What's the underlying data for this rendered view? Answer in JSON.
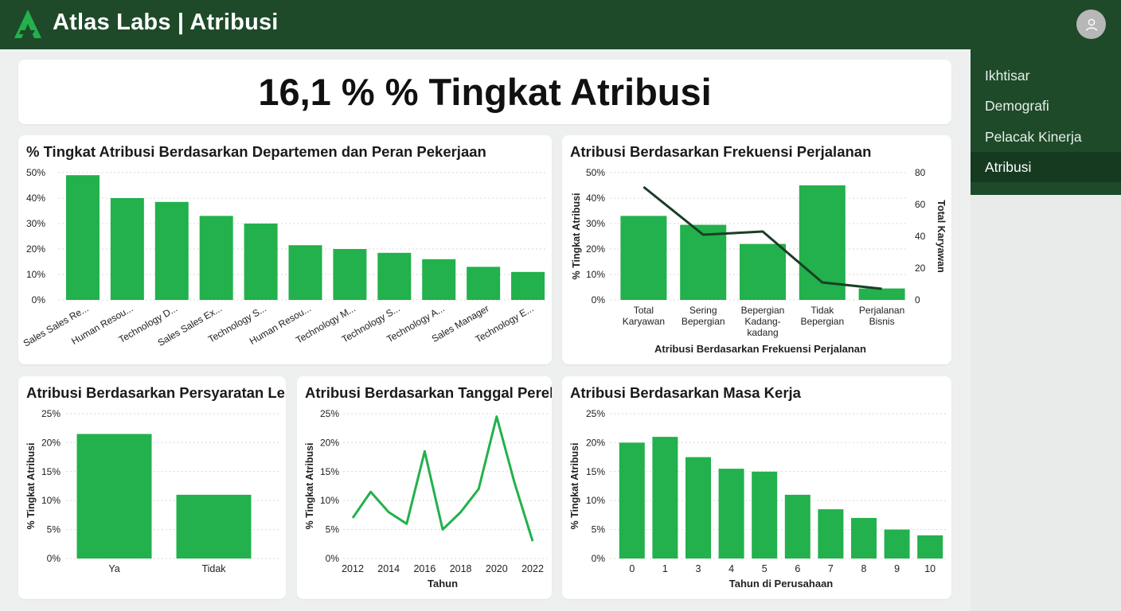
{
  "app": {
    "title": "Atlas Labs | Atribusi"
  },
  "nav": [
    {
      "label": "Ikhtisar",
      "active": false
    },
    {
      "label": "Demografi",
      "active": false
    },
    {
      "label": "Pelacak Kinerja",
      "active": false
    },
    {
      "label": "Atribusi",
      "active": true
    }
  ],
  "kpi": {
    "text": "16,1 % % Tingkat Atribusi"
  },
  "colors": {
    "bar": "#22b14c",
    "line": "#1a3d26",
    "header": "#1e4a2a",
    "grid": "#d9d9d9"
  },
  "icons": {
    "logo": "atlas-logo",
    "avatar": "user-icon"
  },
  "chart_data": [
    {
      "id": "dept",
      "type": "bar",
      "title": "% Tingkat Atribusi Berdasarkan Departemen dan Peran Pekerjaan",
      "categories": [
        "Sales Sales Re...",
        "Human Resou...",
        "Technology D...",
        "Sales Sales Ex...",
        "Technology S...",
        "Human Resou...",
        "Technology M...",
        "Technology S...",
        "Technology A...",
        "Sales Manager",
        "Technology E..."
      ],
      "values": [
        49,
        40,
        38.5,
        33,
        30,
        21.5,
        20,
        18.5,
        16,
        13,
        11
      ],
      "yticks": [
        "0%",
        "10%",
        "20%",
        "30%",
        "40%",
        "50%"
      ],
      "ylim": [
        0,
        50
      ],
      "ylabel": "",
      "xlabel": "",
      "grid": true
    },
    {
      "id": "travel",
      "type": "bar",
      "title": "Atribusi Berdasarkan Frekuensi Perjalanan",
      "categories": [
        [
          "Total",
          "Karyawan"
        ],
        [
          "Sering",
          "Bepergian"
        ],
        [
          "Bepergian",
          "Kadang-",
          "kadang"
        ],
        [
          "Tidak",
          "Bepergian"
        ],
        [
          "Perjalanan",
          "Bisnis"
        ]
      ],
      "series": [
        {
          "name": "",
          "kind": "bar",
          "axis": "left",
          "values": [
            33,
            29.5,
            22,
            45,
            4.5
          ]
        },
        {
          "name": "",
          "kind": "line",
          "axis": "right",
          "values": [
            71,
            41,
            43,
            11,
            7
          ]
        }
      ],
      "yticks": [
        "0%",
        "10%",
        "20%",
        "30%",
        "40%",
        "50%"
      ],
      "ylim": [
        0,
        50
      ],
      "y2ticks": [
        "0",
        "20",
        "40",
        "60",
        "80"
      ],
      "y2lim": [
        0,
        80
      ],
      "ylabel": "% Tingkat Atribusi",
      "y2label": "Total Karyawan",
      "xlabel": "Atribusi Berdasarkan Frekuensi Perjalanan",
      "grid": true
    },
    {
      "id": "overtime",
      "type": "bar",
      "title": "Atribusi Berdasarkan Persyaratan Lembur",
      "categories": [
        "Ya",
        "Tidak"
      ],
      "values": [
        21.5,
        11
      ],
      "yticks": [
        "0%",
        "5%",
        "10%",
        "15%",
        "20%",
        "25%"
      ],
      "ylim": [
        0,
        25
      ],
      "ylabel": "% Tingkat Atribusi",
      "xlabel": "",
      "grid": true
    },
    {
      "id": "hire",
      "type": "line",
      "title": "Atribusi Berdasarkan Tanggal Perekrutan",
      "x": [
        2012,
        2013,
        2014,
        2015,
        2016,
        2017,
        2018,
        2019,
        2020,
        2021,
        2022
      ],
      "values": [
        7,
        11.5,
        8,
        6,
        18.5,
        5,
        8,
        12,
        24.5,
        13,
        3
      ],
      "xticks": [
        "2012",
        "2014",
        "2016",
        "2018",
        "2020",
        "2022"
      ],
      "xlim": [
        2012,
        2022
      ],
      "yticks": [
        "0%",
        "5%",
        "10%",
        "15%",
        "20%",
        "25%"
      ],
      "ylim": [
        0,
        25
      ],
      "ylabel": "% Tingkat Atribusi",
      "xlabel": "Tahun",
      "grid": true
    },
    {
      "id": "tenure",
      "type": "bar",
      "title": "Atribusi Berdasarkan Masa Kerja",
      "categories": [
        "0",
        "1",
        "3",
        "4",
        "5",
        "6",
        "7",
        "8",
        "9",
        "10"
      ],
      "values": [
        20,
        21,
        17.5,
        15.5,
        15,
        11,
        8.5,
        7,
        5,
        4
      ],
      "yticks": [
        "0%",
        "5%",
        "10%",
        "15%",
        "20%",
        "25%"
      ],
      "ylim": [
        0,
        25
      ],
      "ylabel": "% Tingkat Atribusi",
      "xlabel": "Tahun di Perusahaan",
      "grid": true
    }
  ]
}
